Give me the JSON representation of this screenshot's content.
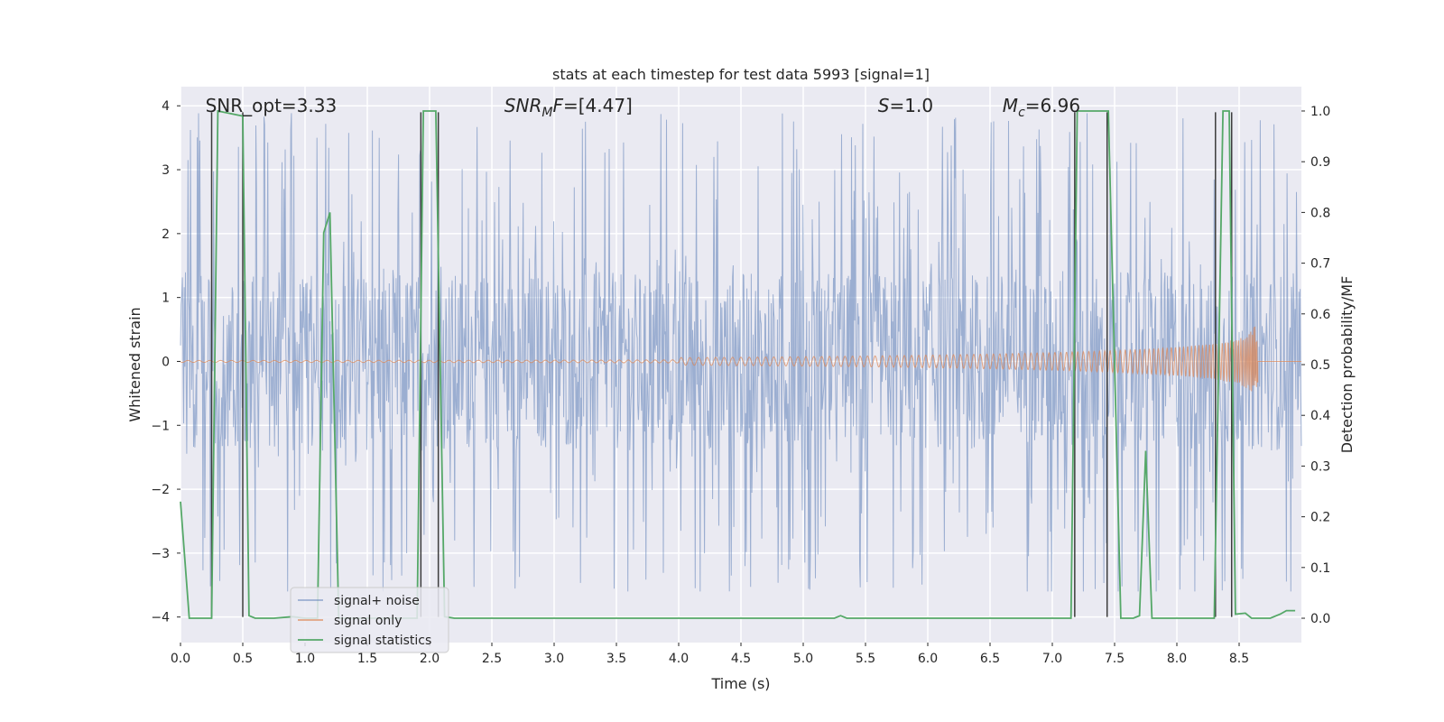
{
  "chart_data": {
    "type": "line",
    "title": "stats at each timestep for test data 5993 [signal=1]",
    "xlabel": "Time (s)",
    "ylabel": "Whitened strain",
    "ylabel_right": "Detection probability/MF",
    "xlim": [
      0.0,
      9.0
    ],
    "ylim": [
      -4.4,
      4.3
    ],
    "ylim_right": [
      -0.048,
      1.048
    ],
    "x_ticks": [
      0.0,
      0.5,
      1.0,
      1.5,
      2.0,
      2.5,
      3.0,
      3.5,
      4.0,
      4.5,
      5.0,
      5.5,
      6.0,
      6.5,
      7.0,
      7.5,
      8.0,
      8.5
    ],
    "x_tick_labels": [
      "0.0",
      "0.5",
      "1.0",
      "1.5",
      "2.0",
      "2.5",
      "3.0",
      "3.5",
      "4.0",
      "4.5",
      "5.0",
      "5.5",
      "6.0",
      "6.5",
      "7.0",
      "7.5",
      "8.0",
      "8.5"
    ],
    "y_ticks": [
      -4,
      -3,
      -2,
      -1,
      0,
      1,
      2,
      3,
      4
    ],
    "y_tick_labels": [
      "−4",
      "−3",
      "−2",
      "−1",
      "0",
      "1",
      "2",
      "3",
      "4"
    ],
    "y_right_ticks": [
      0.0,
      0.1,
      0.2,
      0.3,
      0.4,
      0.5,
      0.6,
      0.7,
      0.8,
      0.9,
      1.0
    ],
    "y_right_tick_labels": [
      "0.0",
      "0.1",
      "0.2",
      "0.3",
      "0.4",
      "0.5",
      "0.6",
      "0.7",
      "0.8",
      "0.9",
      "1.0"
    ],
    "grid": true,
    "legend": {
      "location": "bottom-left",
      "entries": [
        "signal+ noise",
        "signal only",
        "signal statistics"
      ]
    },
    "annotations": [
      {
        "text": "SNR_opt=3.33",
        "x": 0.2,
        "y": 4.0
      },
      {
        "text": "SNR_MF=[4.47]",
        "sym": "SNR",
        "sub": "M",
        "rest": "F=[4.47]",
        "x": 2.6,
        "y": 4.0
      },
      {
        "text": "S=1.0",
        "sym": "S",
        "rest": "=1.0",
        "x": 5.6,
        "y": 4.0
      },
      {
        "text": "M_c=6.96",
        "sym": "M",
        "sub": "c",
        "rest": "=6.96",
        "x": 6.6,
        "y": 4.0
      }
    ],
    "series": [
      {
        "name": "signal+ noise",
        "color": "#4c72b0",
        "kind": "noise",
        "band_upper": 1.4,
        "band_lower": -1.4,
        "spike_max": 3.9,
        "spike_min": -3.6,
        "seed": 5993
      },
      {
        "name": "signal only",
        "color": "#dd8452",
        "kind": "chirp",
        "end_time": 8.65,
        "peak_amplitude": 0.55
      },
      {
        "name": "signal statistics",
        "color": "#55a868",
        "axis": "right",
        "x": [
          0.0,
          0.07,
          0.25,
          0.3,
          0.5,
          0.55,
          0.6,
          0.75,
          0.9,
          1.0,
          1.1,
          1.15,
          1.2,
          1.27,
          1.3,
          1.9,
          1.95,
          2.0,
          2.05,
          2.12,
          2.2,
          5.25,
          5.3,
          5.35,
          7.15,
          7.2,
          7.25,
          7.45,
          7.55,
          7.65,
          7.7,
          7.75,
          7.8,
          7.85,
          7.9,
          7.95,
          8.3,
          8.37,
          8.42,
          8.47,
          8.55,
          8.6,
          8.7,
          8.75,
          8.83,
          8.88,
          8.95
        ],
        "y": [
          0.23,
          0.0,
          0.0,
          1.0,
          0.99,
          0.005,
          0.0,
          0.0,
          0.003,
          0.0,
          0.0,
          0.76,
          0.8,
          0.0,
          0.0,
          0.0,
          1.0,
          1.0,
          1.0,
          0.003,
          0.0,
          0.0,
          0.005,
          0.0,
          0.0,
          1.0,
          1.0,
          1.0,
          0.0,
          0.0,
          0.005,
          0.33,
          0.0,
          0.0,
          0.0,
          0.0,
          0.0,
          1.0,
          1.0,
          0.008,
          0.01,
          0.0,
          0.0,
          0.0,
          0.008,
          0.015,
          0.015
        ]
      }
    ],
    "vertical_markers": {
      "color": "#3c3c3c",
      "x": [
        0.25,
        0.5,
        1.93,
        2.07,
        7.18,
        7.44,
        8.31,
        8.44
      ],
      "y_range": [
        -4.0,
        3.9
      ]
    }
  }
}
